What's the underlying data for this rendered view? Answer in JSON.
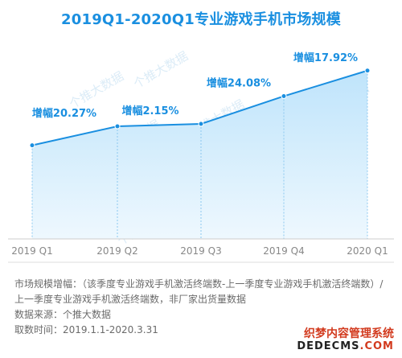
{
  "title": "2019Q1-2020Q1专业游戏手机市场规模",
  "chart_data": {
    "type": "area",
    "categories": [
      "2019 Q1",
      "2019 Q2",
      "2019 Q3",
      "2019 Q4",
      "2020 Q1"
    ],
    "series": [
      {
        "values": [
          100,
          120.27,
          122.86,
          152.44,
          179.75
        ]
      }
    ],
    "annotations": [
      "增幅20.27%",
      "增幅2.15%",
      "增幅24.08%",
      "增幅17.92%"
    ],
    "ylim": [
      0,
      195
    ],
    "colors": {
      "line": "#1a8fe0",
      "fill_top": "#bfe4fb",
      "fill_bottom": "#eef8fe",
      "label": "#1a8fe0",
      "axis": "#cccccc",
      "divider": "#dddddd"
    }
  },
  "watermark": "个推大数据",
  "notes": {
    "line1": "市场规模增幅：（该季度专业游戏手机激活终端数-上一季度专业游戏手机激活终端数）/上一季度专业游戏手机激活终端数，非厂家出货量数据",
    "line2": "数据来源：个推大数据",
    "line3": "取数时间：2019.1.1-2020.3.31"
  },
  "corner_mark": {
    "top": "织梦内容管理系统",
    "bottom_main": "DEDECMS",
    "bottom_dot": ".COM"
  }
}
